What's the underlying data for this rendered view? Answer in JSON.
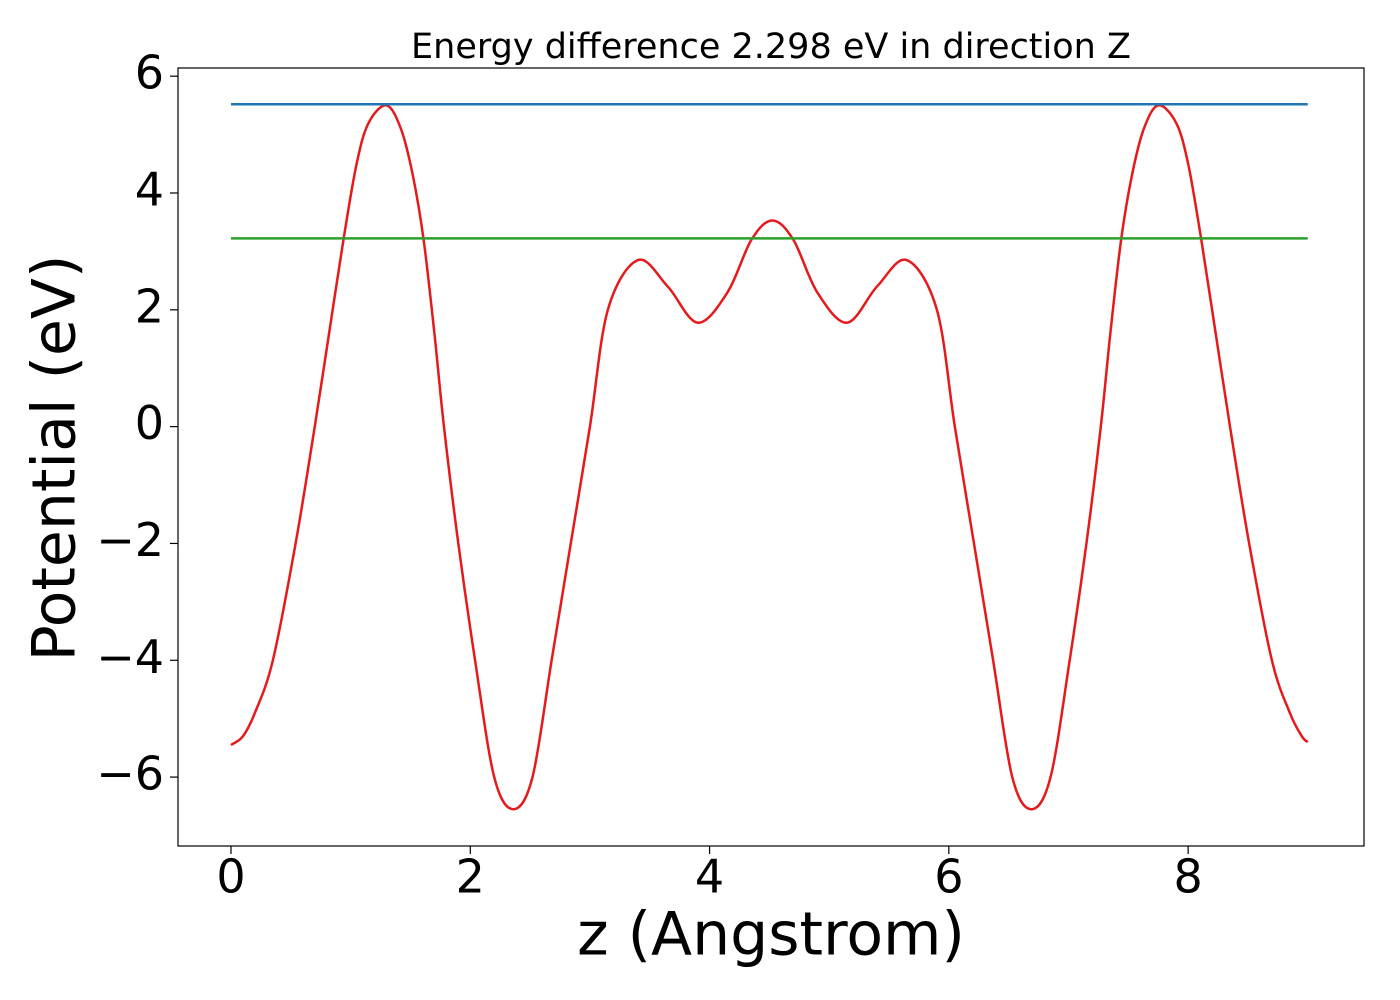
{
  "chart_data": {
    "type": "line",
    "title": "Energy difference 2.298 eV in direction Z",
    "x_label": "z (Angstrom)",
    "y_label": "Potential (eV)",
    "xlim": [
      -0.443,
      9.47
    ],
    "ylim": [
      -7.18,
      6.14
    ],
    "xticks": [
      0,
      2,
      4,
      6,
      8
    ],
    "yticks": [
      {
        "value": -6,
        "label": "−6"
      },
      {
        "value": -4,
        "label": "−4"
      },
      {
        "value": -2,
        "label": "−2"
      },
      0,
      2,
      4,
      6
    ],
    "grid": false,
    "series": [
      {
        "color": "#e41a1c",
        "x": [
          0,
          0.1,
          0.2,
          0.35,
          0.54,
          0.7,
          0.82,
          0.94,
          1.05,
          1.15,
          1.3,
          1.42,
          1.52,
          1.61,
          1.7,
          1.78,
          1.9,
          2.04,
          2.2,
          2.36,
          2.52,
          2.68,
          2.84,
          3.0,
          3.15,
          3.4,
          3.65,
          3.9,
          4.15,
          4.35,
          4.525,
          4.7,
          4.9,
          5.15,
          5.4,
          5.65,
          5.9,
          6.05,
          6.21,
          6.37,
          6.53,
          6.69,
          6.85,
          7.01,
          7.15,
          7.27,
          7.35,
          7.44,
          7.53,
          7.63,
          7.75,
          7.9,
          8.0,
          8.11,
          8.23,
          8.35,
          8.51,
          8.7,
          8.85,
          8.95,
          9.0
        ],
        "values": [
          -5.45,
          -5.3,
          -4.9,
          -4.0,
          -2.0,
          0,
          1.6,
          3.2,
          4.5,
          5.2,
          5.5,
          5.1,
          4.3,
          3.2,
          1.6,
          0,
          -2,
          -4,
          -6,
          -6.55,
          -6,
          -4,
          -2,
          0,
          2,
          2.85,
          2.4,
          1.78,
          2.3,
          3.2,
          3.53,
          3.2,
          2.3,
          1.78,
          2.4,
          2.85,
          2,
          0,
          -2,
          -4,
          -6,
          -6.55,
          -6,
          -4,
          -2,
          0,
          1.6,
          3.2,
          4.3,
          5.1,
          5.5,
          5.2,
          4.5,
          3.2,
          1.6,
          0,
          -2,
          -4,
          -4.9,
          -5.3,
          -5.4
        ]
      },
      {
        "color": "#1f77b4",
        "x": [
          0,
          9.0
        ],
        "values": [
          5.52,
          5.52
        ]
      },
      {
        "color": "#2ca02c",
        "x": [
          0,
          9.0
        ],
        "values": [
          3.222,
          3.222
        ]
      }
    ]
  }
}
